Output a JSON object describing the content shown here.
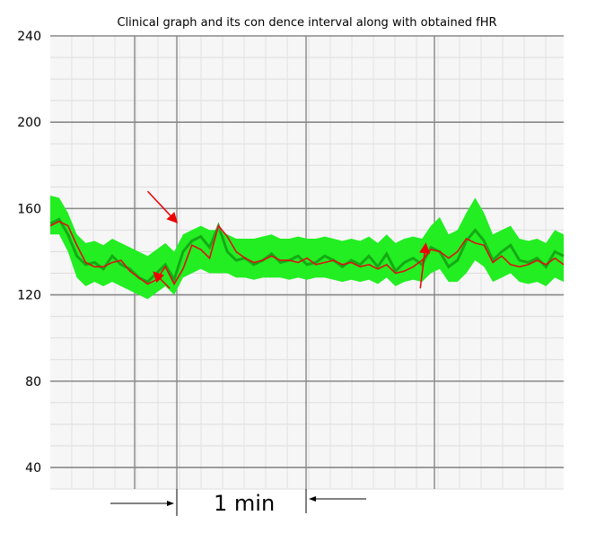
{
  "chart_data": {
    "type": "line",
    "title": "Clinical graph and its con  dence interval along with obtained fHR",
    "xlabel": "",
    "ylabel": "",
    "ylim": [
      30,
      240
    ],
    "yticks": [
      40,
      80,
      120,
      160,
      200,
      240
    ],
    "grid": true,
    "scale_bar_label": "1 min",
    "colors": {
      "band": "#22ee22",
      "band_dark": "#119911",
      "fhr": "#dd1111",
      "arrow": "#ee0000",
      "grid": "#888888"
    },
    "series": [
      {
        "x": [
          0,
          10,
          20,
          30,
          40,
          50,
          60,
          70,
          80,
          90,
          100,
          110,
          120,
          130,
          140,
          150,
          160,
          170,
          180,
          190,
          200,
          210,
          220,
          230,
          240,
          250,
          260,
          270,
          280,
          290,
          300,
          310,
          320,
          330,
          340,
          350,
          360,
          370,
          380,
          390,
          400,
          410,
          420,
          430,
          440,
          450,
          460,
          470,
          480,
          490,
          500,
          510,
          520,
          530,
          540,
          550,
          560,
          570,
          580
        ],
        "values": [
          153,
          155,
          148,
          138,
          134,
          135,
          132,
          138,
          134,
          132,
          128,
          126,
          130,
          134,
          127,
          140,
          145,
          147,
          142,
          152,
          140,
          136,
          137,
          134,
          136,
          139,
          135,
          136,
          138,
          134,
          135,
          138,
          136,
          133,
          136,
          134,
          138,
          133,
          139,
          131,
          135,
          137,
          134,
          142,
          140,
          133,
          136,
          145,
          150,
          145,
          136,
          140,
          143,
          136,
          135,
          137,
          133,
          140,
          138
        ],
        "lower": [
          148,
          148,
          140,
          128,
          124,
          126,
          124,
          126,
          124,
          122,
          120,
          118,
          121,
          124,
          120,
          128,
          130,
          132,
          130,
          130,
          130,
          128,
          128,
          127,
          128,
          128,
          128,
          127,
          128,
          127,
          128,
          128,
          127,
          126,
          127,
          126,
          127,
          125,
          128,
          124,
          126,
          127,
          126,
          130,
          132,
          126,
          126,
          130,
          136,
          133,
          126,
          128,
          130,
          126,
          125,
          126,
          124,
          128,
          126
        ]
      },
      {
        "name": "",
        "x": [
          0,
          10,
          20,
          30,
          40,
          50,
          60,
          70,
          80,
          90,
          100,
          110,
          120,
          130,
          140,
          150,
          160,
          170,
          180,
          190,
          200,
          210,
          220,
          230,
          240,
          250,
          260,
          270,
          280,
          290,
          300,
          310,
          320,
          330,
          340,
          350,
          360,
          370,
          380,
          390,
          400,
          410,
          420,
          430,
          440,
          450,
          460,
          470,
          480,
          490,
          500,
          510,
          520,
          530,
          540,
          550,
          560,
          570,
          580
        ],
        "values": [
          166,
          165,
          158,
          148,
          144,
          145,
          143,
          146,
          144,
          142,
          140,
          138,
          141,
          144,
          140,
          148,
          150,
          152,
          150,
          150,
          148,
          146,
          146,
          146,
          147,
          148,
          146,
          146,
          147,
          146,
          146,
          147,
          146,
          145,
          146,
          145,
          147,
          144,
          148,
          144,
          146,
          147,
          146,
          152,
          156,
          148,
          150,
          158,
          165,
          158,
          148,
          150,
          152,
          146,
          145,
          146,
          144,
          150,
          148
        ]
      },
      {
        "name": "",
        "x": [
          0,
          10,
          20,
          30,
          40,
          50,
          60,
          70,
          80,
          90,
          100,
          110,
          120,
          130,
          140,
          150,
          160,
          170,
          180,
          190,
          200,
          210,
          220,
          230,
          240,
          250,
          260,
          270,
          280,
          290,
          300,
          310,
          320,
          330,
          340,
          350,
          360,
          370,
          380,
          390,
          400,
          410,
          420,
          430,
          440,
          450,
          460,
          470,
          480,
          490,
          500,
          510,
          520,
          530,
          540,
          550,
          560,
          570,
          580
        ],
        "values": [
          152,
          154,
          152,
          143,
          135,
          133,
          133,
          135,
          136,
          131,
          128,
          125,
          127,
          133,
          125,
          132,
          143,
          141,
          137,
          152,
          147,
          140,
          137,
          135,
          136,
          138,
          136,
          136,
          135,
          137,
          134,
          135,
          136,
          134,
          135,
          133,
          134,
          132,
          134,
          130,
          131,
          133,
          136,
          141,
          140,
          137,
          140,
          146,
          144,
          143,
          135,
          138,
          134,
          133,
          134,
          136,
          134,
          137,
          134
        ]
      }
    ],
    "annotations": [
      {
        "type": "arrow",
        "from": [
          110,
          168
        ],
        "to": [
          142,
          154
        ]
      },
      {
        "type": "arrow",
        "from": [
          135,
          123
        ],
        "to": [
          118,
          130
        ]
      },
      {
        "type": "arrow",
        "from": [
          418,
          123
        ],
        "to": [
          424,
          143
        ]
      }
    ]
  }
}
